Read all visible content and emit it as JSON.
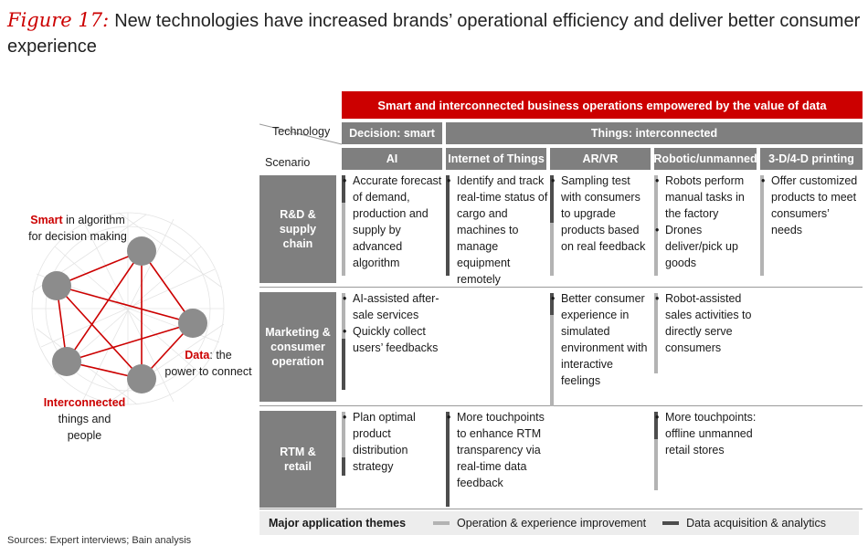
{
  "figure": {
    "label": "Figure 17:",
    "title": "New technologies have increased brands’ operational efficiency and deliver better consumer experience"
  },
  "header": {
    "banner": "Smart and interconnected business operations empowered by the value of data",
    "axis_technology": "Technology",
    "axis_scenario": "Scenario",
    "group_smart": "Decision: smart",
    "group_interconnected": "Things: interconnected",
    "columns": [
      "AI",
      "Internet of Things",
      "AR/VR",
      "Robotic/unmanned",
      "3-D/4-D printing"
    ]
  },
  "rows": [
    {
      "label": "R&D & supply chain",
      "cells": [
        [
          "Accurate forecast of demand, production and supply by advanced algorithm"
        ],
        [
          "Identify and track real-time status of cargo and machines to manage equipment remotely"
        ],
        [
          "Sampling test with consumers to upgrade products based on real feedback"
        ],
        [
          "Robots perform manual tasks in the factory",
          "Drones deliver/pick up goods"
        ],
        [
          "Offer customized products to meet consumers’ needs"
        ]
      ]
    },
    {
      "label": "Marketing & consumer operation",
      "cells": [
        [
          "AI-assisted after-sale services",
          "Quickly collect users’ feedbacks"
        ],
        [],
        [
          "Better consumer experience in simulated environment with interactive feelings"
        ],
        [
          "Robot-assisted sales activities to directly serve consumers"
        ],
        []
      ]
    },
    {
      "label": "RTM & retail",
      "cells": [
        [
          "Plan optimal product distribution strategy"
        ],
        [
          "More touchpoints to enhance RTM transparency via real-time data feedback"
        ],
        [],
        [
          "More touchpoints: offline unmanned retail stores"
        ],
        []
      ]
    }
  ],
  "legend": {
    "title": "Major application themes",
    "light_label": "Operation & experience improvement",
    "dark_label": "Data acquisition & analytics",
    "light_color": "#b3b3b3",
    "dark_color": "#4d4d4d"
  },
  "network": {
    "smart_word": "Smart",
    "smart_rest": " in algorithm",
    "smart_line2": "for decision making",
    "data_word": "Data",
    "data_rest": ": the",
    "data_line2": "power to connect",
    "inter_word": "Interconnected",
    "inter_line2": "things and",
    "inter_line3": "people"
  },
  "source": "Sources: Expert interviews; Bain analysis",
  "colors": {
    "brand_red": "#cc0000",
    "header_grey": "#7f7f7f"
  }
}
